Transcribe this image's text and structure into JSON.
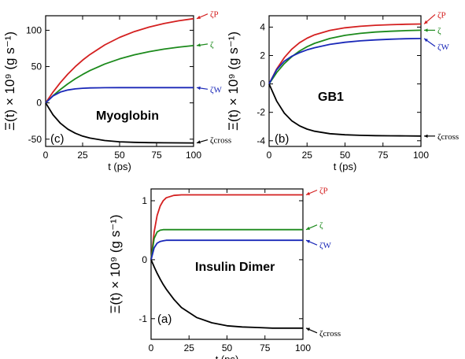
{
  "chart_data": [
    {
      "type": "line",
      "panel_label": "(c)",
      "title": "Myoglobin",
      "xlabel": "t (ps)",
      "ylabel": "Ξ(t) × 10⁹ (g s⁻¹)",
      "xlim": [
        0,
        100
      ],
      "ylim": [
        -60,
        120
      ],
      "xticks": [
        0,
        25,
        50,
        75,
        100
      ],
      "yticks": [
        -50,
        0,
        50,
        100
      ],
      "x": [
        0,
        5,
        10,
        15,
        20,
        25,
        30,
        40,
        50,
        60,
        70,
        80,
        90,
        100
      ],
      "series": [
        {
          "name": "ζP",
          "color": "#d42020",
          "values": [
            0,
            14.9,
            28.0,
            39.6,
            49.8,
            58.8,
            66.7,
            79.9,
            90.2,
            98.2,
            104.4,
            109.3,
            113.1,
            116.0
          ]
        },
        {
          "name": "ζ",
          "color": "#1c8a1c",
          "values": [
            0,
            9.8,
            18.5,
            26.2,
            33.1,
            39.1,
            44.5,
            53.5,
            60.6,
            66.2,
            70.6,
            74.0,
            76.7,
            78.9
          ]
        },
        {
          "name": "ζW",
          "color": "#1a28b8",
          "values": [
            0,
            9.6,
            14.9,
            17.7,
            19.3,
            20.1,
            20.6,
            20.9,
            21.0,
            21.0,
            21.0,
            21.0,
            21.0,
            21.0
          ]
        },
        {
          "name": "ζcross",
          "color": "#000000",
          "values": [
            0,
            -16.5,
            -28.1,
            -36.2,
            -41.8,
            -45.8,
            -48.5,
            -51.9,
            -53.6,
            -54.4,
            -54.8,
            -55.0,
            -55.1,
            -55.2
          ]
        }
      ]
    },
    {
      "type": "line",
      "panel_label": "(b)",
      "title": "GB1",
      "xlabel": "t (ps)",
      "ylabel": "Ξ(t) × 10⁹ (g s⁻¹)",
      "xlim": [
        0,
        100
      ],
      "ylim": [
        -4.4,
        4.8
      ],
      "xticks": [
        0,
        25,
        50,
        75,
        100
      ],
      "yticks": [
        -4,
        -2,
        0,
        2,
        4
      ],
      "x": [
        0,
        5,
        10,
        15,
        20,
        25,
        30,
        40,
        50,
        60,
        70,
        80,
        90,
        100
      ],
      "series": [
        {
          "name": "ζP",
          "color": "#d42020",
          "values": [
            0,
            1.05,
            1.85,
            2.45,
            2.9,
            3.22,
            3.46,
            3.77,
            3.95,
            4.06,
            4.13,
            4.17,
            4.2,
            4.22
          ]
        },
        {
          "name": "ζ",
          "color": "#1c8a1c",
          "values": [
            0,
            0.8,
            1.43,
            1.92,
            2.31,
            2.62,
            2.86,
            3.2,
            3.42,
            3.56,
            3.65,
            3.71,
            3.75,
            3.78
          ]
        },
        {
          "name": "ζW",
          "color": "#1a28b8",
          "values": [
            0,
            1.0,
            1.6,
            1.95,
            2.2,
            2.4,
            2.55,
            2.78,
            2.93,
            3.03,
            3.1,
            3.15,
            3.18,
            3.2
          ]
        },
        {
          "name": "ζcross",
          "color": "#000000",
          "values": [
            0,
            -1.2,
            -2.05,
            -2.6,
            -2.95,
            -3.18,
            -3.33,
            -3.5,
            -3.58,
            -3.62,
            -3.64,
            -3.65,
            -3.66,
            -3.67
          ]
        }
      ]
    },
    {
      "type": "line",
      "panel_label": "(a)",
      "title": "Insulin Dimer",
      "xlabel": "t (ps)",
      "ylabel": "Ξ(t) × 10⁹ (g s⁻¹)",
      "xlim": [
        0,
        100
      ],
      "ylim": [
        -1.35,
        1.2
      ],
      "xticks": [
        0,
        25,
        50,
        75,
        100
      ],
      "yticks": [
        -1,
        0,
        1
      ],
      "x": [
        0,
        2,
        4,
        6,
        8,
        10,
        15,
        20,
        30,
        40,
        50,
        60,
        70,
        80,
        90,
        100
      ],
      "series": [
        {
          "name": "ζP",
          "color": "#d42020",
          "values": [
            0,
            0.47,
            0.75,
            0.91,
            1.0,
            1.05,
            1.09,
            1.1,
            1.1,
            1.1,
            1.1,
            1.1,
            1.1,
            1.1,
            1.1,
            1.1
          ]
        },
        {
          "name": "ζ",
          "color": "#1c8a1c",
          "values": [
            0,
            0.36,
            0.47,
            0.5,
            0.51,
            0.51,
            0.51,
            0.51,
            0.51,
            0.51,
            0.51,
            0.51,
            0.51,
            0.51,
            0.51,
            0.51
          ]
        },
        {
          "name": "ζW",
          "color": "#1a28b8",
          "values": [
            0,
            0.2,
            0.28,
            0.31,
            0.32,
            0.33,
            0.33,
            0.33,
            0.33,
            0.33,
            0.33,
            0.33,
            0.33,
            0.33,
            0.33,
            0.33
          ]
        },
        {
          "name": "ζcross",
          "color": "#000000",
          "values": [
            0,
            -0.12,
            -0.23,
            -0.33,
            -0.42,
            -0.5,
            -0.67,
            -0.81,
            -0.98,
            -1.07,
            -1.12,
            -1.14,
            -1.15,
            -1.16,
            -1.16,
            -1.16
          ]
        }
      ]
    }
  ]
}
